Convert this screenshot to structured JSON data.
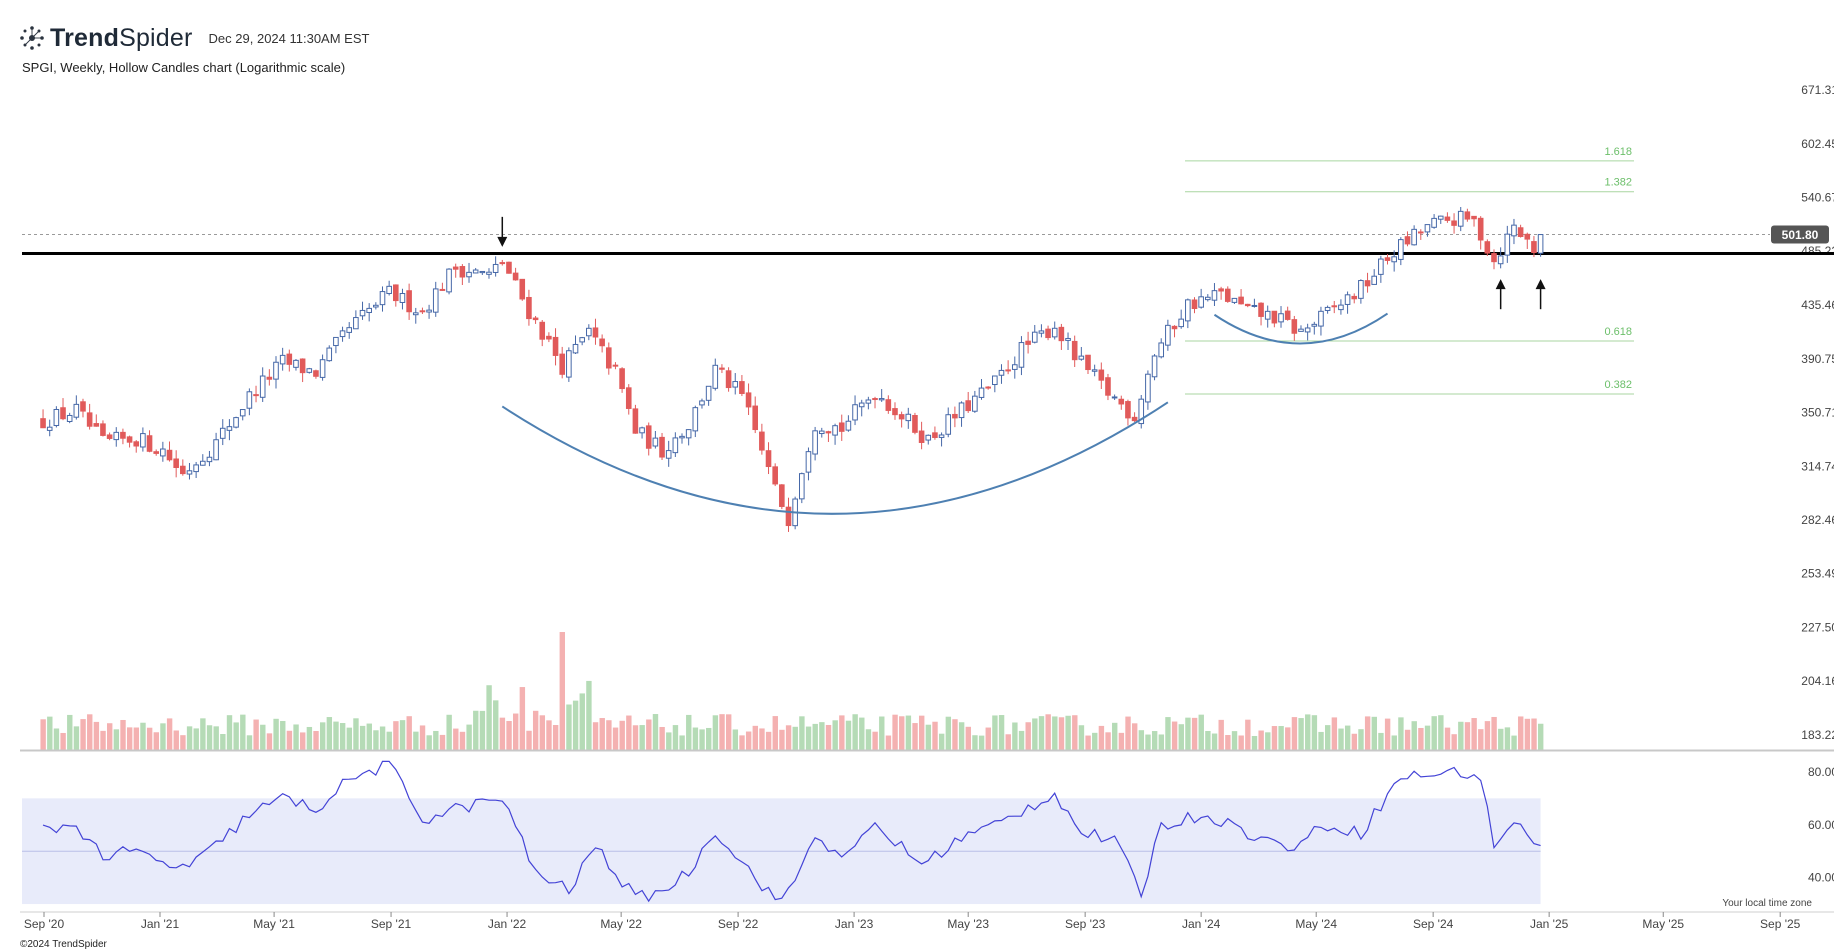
{
  "app": {
    "brand_prefix": "Trend",
    "brand_suffix": "Spider",
    "timestamp": "Dec 29, 2024 11:30AM EST",
    "subtitle": "SPGI, Weekly, Hollow Candles chart (Logarithmic scale)",
    "footer": "©2024 TrendSpider",
    "tz_note": "Your local time zone"
  },
  "chart_data": {
    "type": "candlestick",
    "scale": "log",
    "symbol": "SPGI",
    "timeframe": "Weekly",
    "y_ticks": [
      671.31,
      602.45,
      540.67,
      485.22,
      435.46,
      390.75,
      350.71,
      314.74,
      282.46,
      253.49,
      227.5,
      204.16,
      183.22
    ],
    "y_tick_labels": [
      "671.31",
      "602.45",
      "540.67",
      "485.22",
      "435.46",
      "390.75",
      "350.71",
      "314.74",
      "282.46",
      "253.49",
      "227.50",
      "204.16",
      "183.22"
    ],
    "x_ticks": [
      "Sep '20",
      "Jan '21",
      "May '21",
      "Sep '21",
      "Jan '22",
      "May '22",
      "Sep '22",
      "Jan '23",
      "May '23",
      "Sep '23",
      "Jan '24",
      "May '24",
      "Sep '24",
      "Jan '25",
      "May '25",
      "Sep '25"
    ],
    "last_price": 501.8,
    "last_price_label": "501.80",
    "support_level": 483,
    "price_path": [
      [
        "2020-08-31",
        345
      ],
      [
        "2020-10-05",
        352
      ],
      [
        "2020-11-02",
        330
      ],
      [
        "2020-12-07",
        333
      ],
      [
        "2021-01-04",
        325
      ],
      [
        "2021-01-25",
        310
      ],
      [
        "2021-03-01",
        330
      ],
      [
        "2021-04-05",
        362
      ],
      [
        "2021-05-10",
        388
      ],
      [
        "2021-06-14",
        380
      ],
      [
        "2021-07-19",
        415
      ],
      [
        "2021-08-30",
        446
      ],
      [
        "2021-10-04",
        430
      ],
      [
        "2021-11-08",
        470
      ],
      [
        "2021-12-13",
        462
      ],
      [
        "2021-12-27",
        475
      ],
      [
        "2022-01-24",
        430
      ],
      [
        "2022-02-28",
        385
      ],
      [
        "2022-03-28",
        412
      ],
      [
        "2022-04-25",
        380
      ],
      [
        "2022-05-16",
        338
      ],
      [
        "2022-06-13",
        325
      ],
      [
        "2022-07-11",
        342
      ],
      [
        "2022-08-08",
        382
      ],
      [
        "2022-09-05",
        362
      ],
      [
        "2022-10-10",
        300
      ],
      [
        "2022-10-24",
        284
      ],
      [
        "2022-11-21",
        344
      ],
      [
        "2022-12-19",
        340
      ],
      [
        "2023-01-23",
        366
      ],
      [
        "2023-02-27",
        344
      ],
      [
        "2023-03-20",
        332
      ],
      [
        "2023-04-24",
        352
      ],
      [
        "2023-05-29",
        372
      ],
      [
        "2023-06-26",
        398
      ],
      [
        "2023-07-31",
        418
      ],
      [
        "2023-08-21",
        392
      ],
      [
        "2023-09-25",
        365
      ],
      [
        "2023-10-23",
        348
      ],
      [
        "2023-11-13",
        395
      ],
      [
        "2023-12-18",
        436
      ],
      [
        "2024-01-22",
        445
      ],
      [
        "2024-02-19",
        430
      ],
      [
        "2024-03-18",
        425
      ],
      [
        "2024-04-15",
        412
      ],
      [
        "2024-05-13",
        428
      ],
      [
        "2024-06-17",
        450
      ],
      [
        "2024-07-22",
        485
      ],
      [
        "2024-08-26",
        510
      ],
      [
        "2024-09-23",
        518
      ],
      [
        "2024-10-14",
        515
      ],
      [
        "2024-11-04",
        476
      ],
      [
        "2024-11-25",
        510
      ],
      [
        "2024-12-16",
        488
      ],
      [
        "2024-12-23",
        501.8
      ]
    ],
    "fib_levels": [
      {
        "label": "1.618",
        "value": 582
      },
      {
        "label": "1.382",
        "value": 547
      },
      {
        "label": "0.618",
        "value": 405
      },
      {
        "label": "0.382",
        "value": 364
      }
    ],
    "annotations": [
      {
        "type": "arrow-down",
        "date": "2021-12-27",
        "value": 520
      },
      {
        "type": "arrow-up",
        "date": "2024-11-11",
        "value": 455
      },
      {
        "type": "arrow-up",
        "date": "2024-12-23",
        "value": 455
      },
      {
        "type": "cup-arc",
        "from": "2021-12-27",
        "to": "2023-11-27",
        "value_start": 355,
        "value_bottom": 286,
        "value_end": 358
      },
      {
        "type": "cup-arc",
        "from": "2024-01-15",
        "to": "2024-07-15",
        "value_start": 427,
        "value_bottom": 403,
        "value_end": 428
      }
    ],
    "volume": {
      "type": "bar",
      "note": "weekly volume bars, green up / red down"
    },
    "rsi": {
      "y_ticks": [
        80,
        60,
        40
      ],
      "y_tick_labels": [
        "80.00",
        "60.00",
        "40.00"
      ],
      "band": [
        30,
        70
      ],
      "midline": 50,
      "path": [
        [
          "2020-08-31",
          58
        ],
        [
          "2020-10-05",
          60
        ],
        [
          "2020-11-02",
          48
        ],
        [
          "2020-12-07",
          50
        ],
        [
          "2021-01-04",
          45
        ],
        [
          "2021-02-01",
          44
        ],
        [
          "2021-03-01",
          52
        ],
        [
          "2021-04-05",
          64
        ],
        [
          "2021-05-10",
          70
        ],
        [
          "2021-06-14",
          66
        ],
        [
          "2021-07-19",
          77
        ],
        [
          "2021-08-30",
          83
        ],
        [
          "2021-10-04",
          62
        ],
        [
          "2021-11-08",
          66
        ],
        [
          "2021-12-27",
          70
        ],
        [
          "2022-01-31",
          42
        ],
        [
          "2022-03-07",
          35
        ],
        [
          "2022-04-04",
          52
        ],
        [
          "2022-05-16",
          32
        ],
        [
          "2022-06-13",
          35
        ],
        [
          "2022-07-11",
          42
        ],
        [
          "2022-08-08",
          58
        ],
        [
          "2022-09-19",
          40
        ],
        [
          "2022-10-17",
          30
        ],
        [
          "2022-11-21",
          55
        ],
        [
          "2022-12-26",
          48
        ],
        [
          "2023-01-23",
          60
        ],
        [
          "2023-03-13",
          45
        ],
        [
          "2023-04-24",
          55
        ],
        [
          "2023-06-05",
          61
        ],
        [
          "2023-07-31",
          72
        ],
        [
          "2023-08-28",
          57
        ],
        [
          "2023-10-02",
          54
        ],
        [
          "2023-10-30",
          34
        ],
        [
          "2023-11-20",
          60
        ],
        [
          "2024-01-08",
          64
        ],
        [
          "2024-02-19",
          57
        ],
        [
          "2024-04-01",
          51
        ],
        [
          "2024-05-13",
          60
        ],
        [
          "2024-06-17",
          57
        ],
        [
          "2024-07-29",
          78
        ],
        [
          "2024-08-26",
          79
        ],
        [
          "2024-09-30",
          80
        ],
        [
          "2024-10-21",
          78
        ],
        [
          "2024-11-04",
          52
        ],
        [
          "2024-11-25",
          62
        ],
        [
          "2024-12-16",
          52
        ],
        [
          "2024-12-23",
          54
        ]
      ]
    }
  },
  "colors": {
    "up": "#4668a8",
    "down": "#e15a5a",
    "volume_up": "#b5dbb6",
    "volume_down": "#f4b1b1",
    "fib_line": "#a9d6a0",
    "fib_label": "#6cbf6a",
    "cup": "#4e80b2",
    "rsi_line": "#4343d6",
    "rsi_band": "#e8ebfa",
    "support": "#000000",
    "badge_bg": "#555555",
    "axis_text": "#444444"
  },
  "icons": {
    "logo": "trendspider-logo-icon"
  }
}
